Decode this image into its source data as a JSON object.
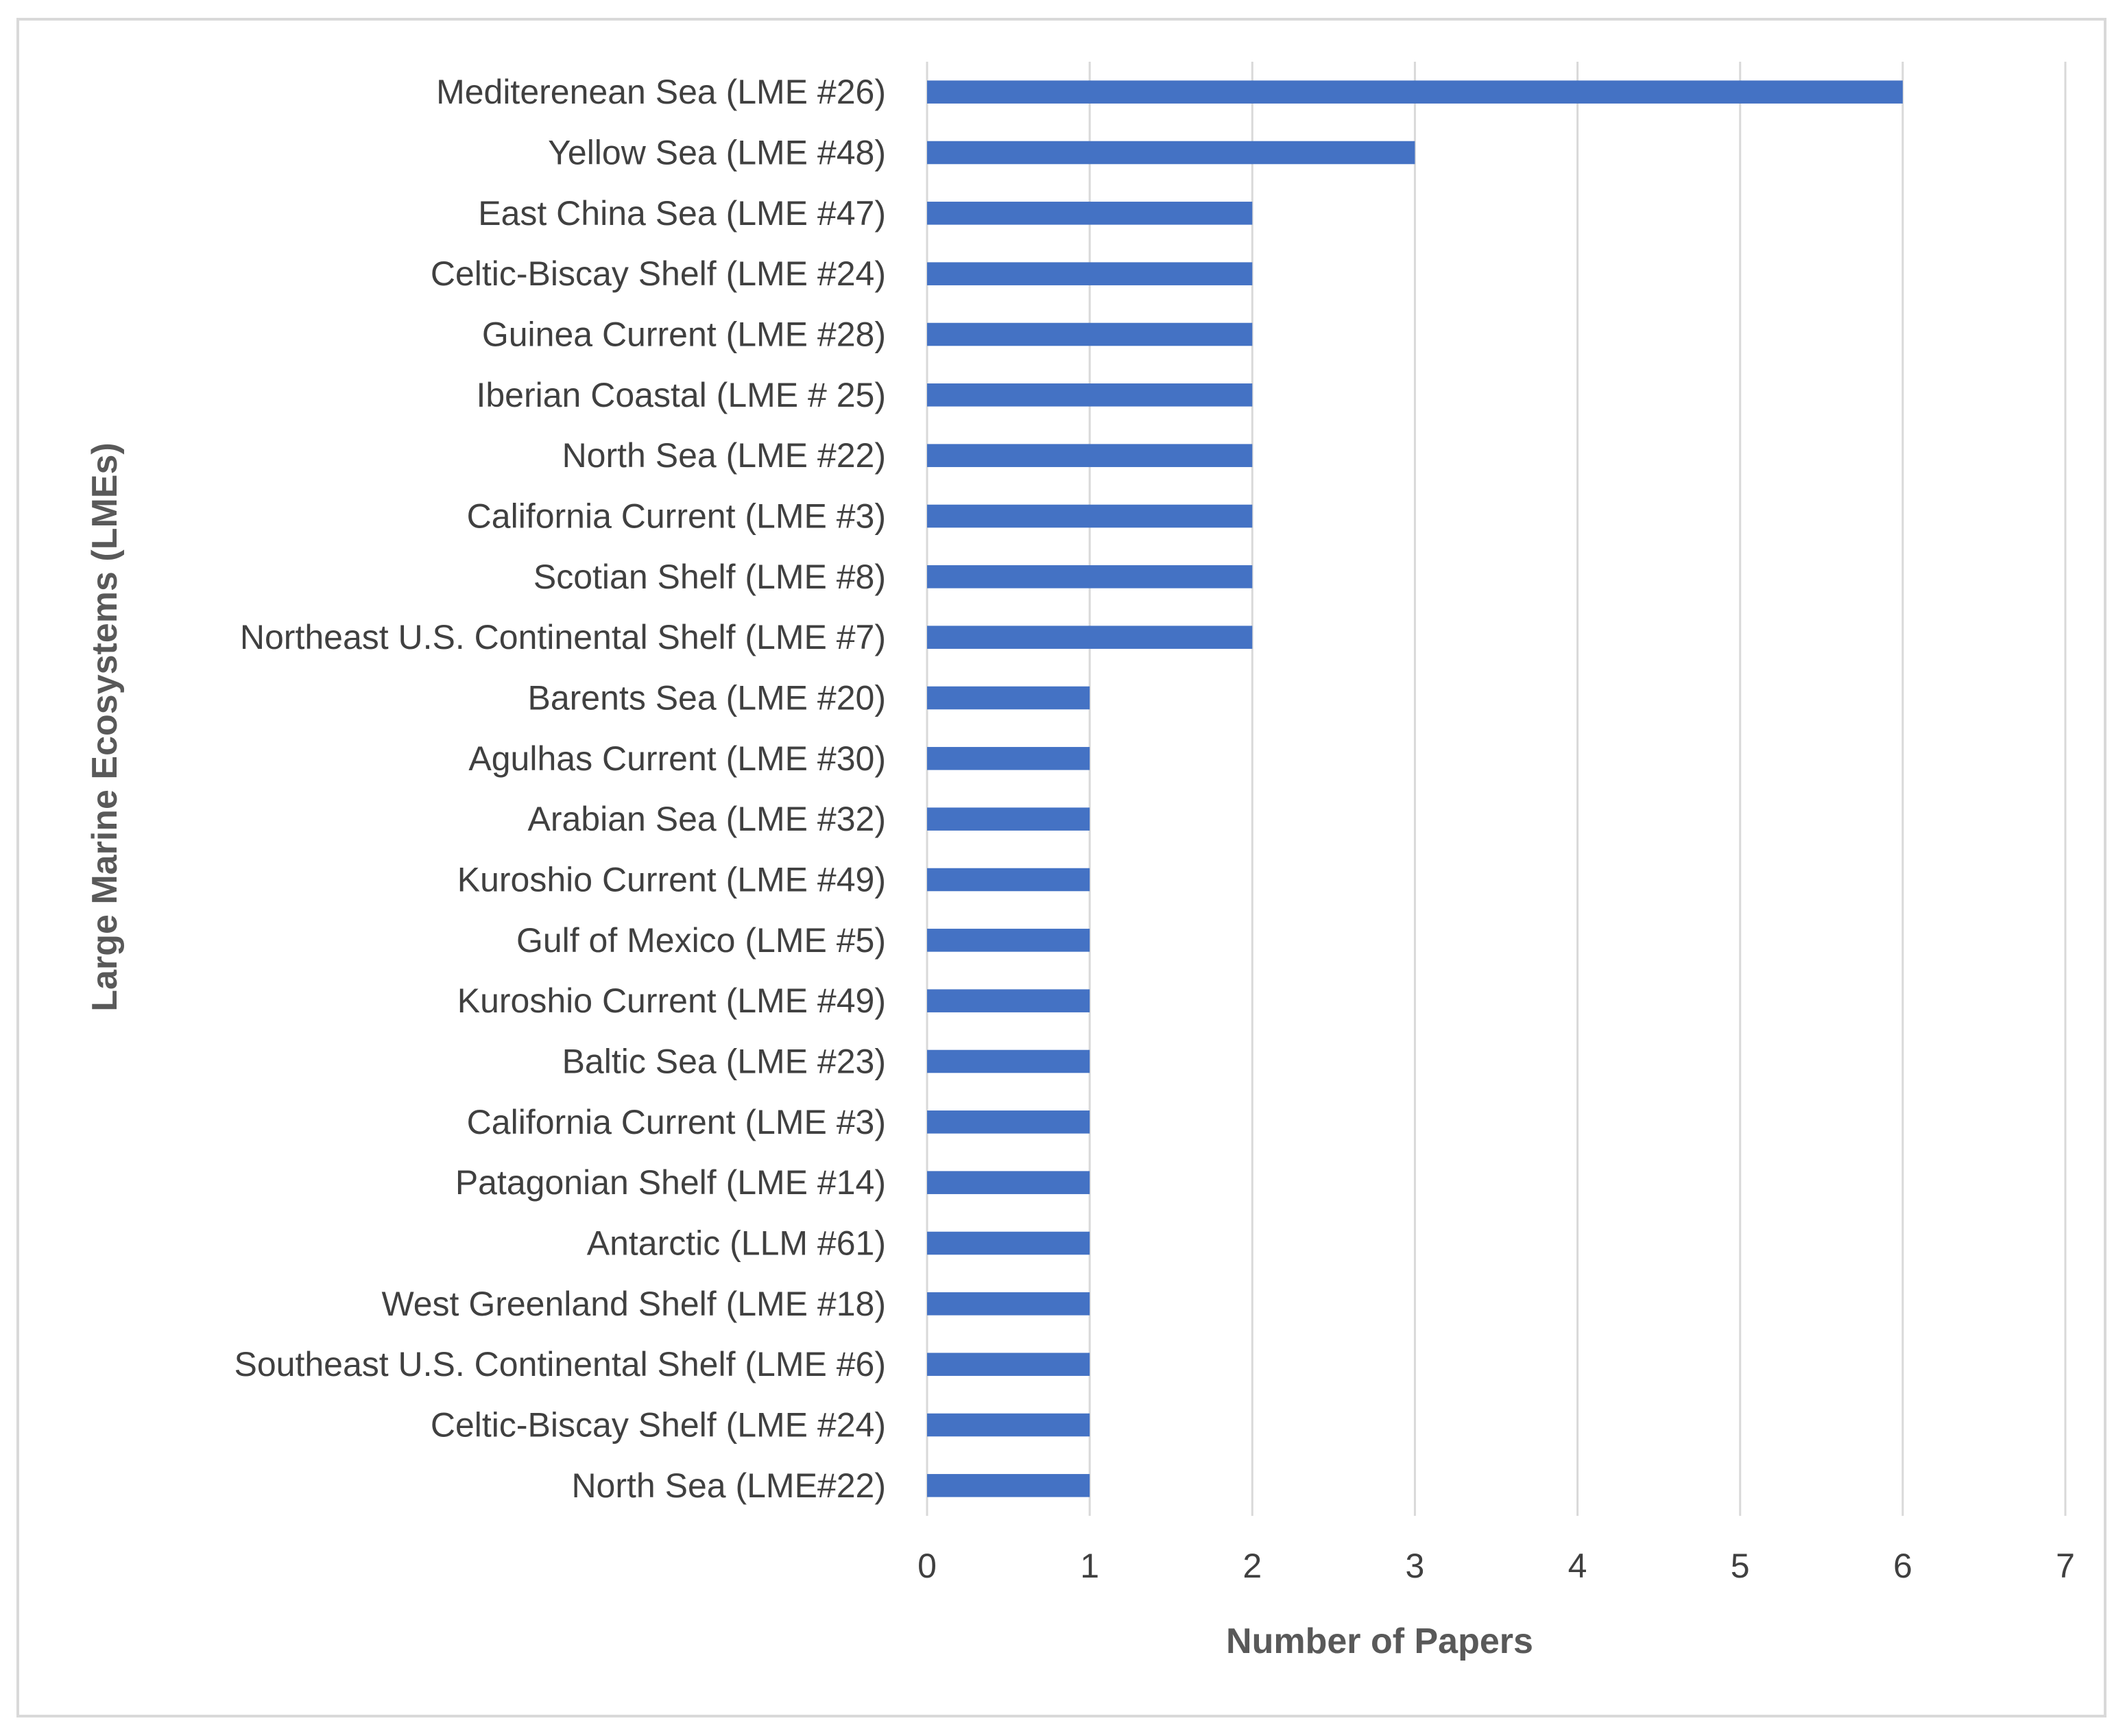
{
  "chart_data": {
    "type": "bar",
    "orientation": "horizontal",
    "title": "",
    "xlabel": "Number of Papers",
    "ylabel": "Large Marine Ecosystems (LMEs)",
    "xlim": [
      0,
      7
    ],
    "xticks": [
      "0",
      "1",
      "2",
      "3",
      "4",
      "5",
      "6",
      "7"
    ],
    "grid": "vertical",
    "bar_color": "#4472c4",
    "categories": [
      "Mediterenean Sea (LME #26)",
      "Yellow Sea (LME #48)",
      "East China Sea (LME #47)",
      "Celtic-Biscay Shelf (LME #24)",
      "Guinea Current (LME #28)",
      "Iberian Coastal (LME # 25)",
      "North Sea (LME #22)",
      "California Current (LME #3)",
      "Scotian Shelf (LME #8)",
      "Northeast U.S. Continental Shelf (LME #7)",
      "Barents Sea (LME #20)",
      "Agulhas Current (LME #30)",
      "Arabian Sea (LME #32)",
      "Kuroshio Current (LME #49)",
      "Gulf of Mexico (LME #5)",
      "Kuroshio Current (LME #49)",
      "Baltic Sea (LME #23)",
      "California Current (LME #3)",
      "Patagonian Shelf (LME #14)",
      "Antarctic (LLM #61)",
      "West Greenland Shelf (LME #18)",
      "Southeast U.S. Continental Shelf (LME #6)",
      "Celtic-Biscay Shelf (LME #24)",
      "North Sea (LME#22)"
    ],
    "values": [
      6,
      3,
      2,
      2,
      2,
      2,
      2,
      2,
      2,
      2,
      1,
      1,
      1,
      1,
      1,
      1,
      1,
      1,
      1,
      1,
      1,
      1,
      1,
      1
    ]
  }
}
